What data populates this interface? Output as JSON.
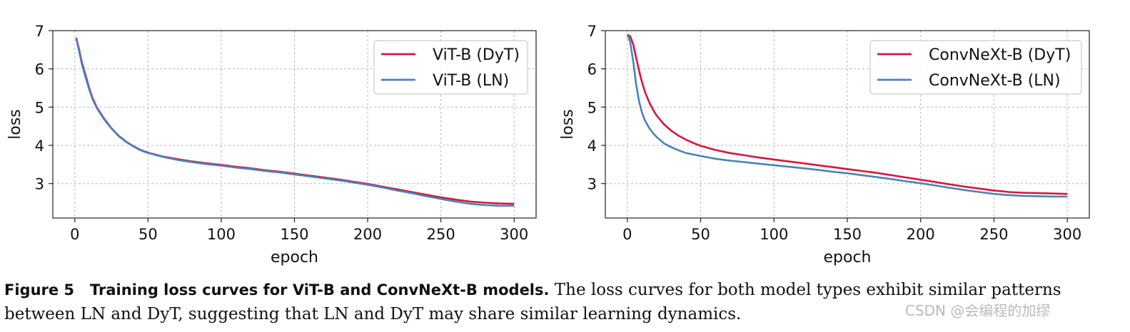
{
  "chart_data": [
    {
      "type": "line",
      "xlabel": "epoch",
      "ylabel": "loss",
      "xlim": [
        -15,
        315
      ],
      "ylim": [
        2.1,
        7
      ],
      "xticks": [
        0,
        50,
        100,
        150,
        200,
        250,
        300
      ],
      "yticks": [
        3,
        4,
        5,
        6,
        7
      ],
      "grid": true,
      "legend_position": "top-right",
      "series": [
        {
          "name": "ViT-B (DyT)",
          "color": "#d6173c",
          "x": [
            1,
            3,
            5,
            8,
            10,
            12,
            15,
            18,
            20,
            25,
            30,
            35,
            40,
            45,
            50,
            60,
            70,
            80,
            90,
            100,
            110,
            120,
            130,
            140,
            150,
            160,
            170,
            180,
            190,
            200,
            210,
            220,
            230,
            240,
            250,
            260,
            270,
            280,
            290,
            300
          ],
          "y": [
            6.82,
            6.5,
            6.15,
            5.75,
            5.48,
            5.25,
            5.0,
            4.82,
            4.7,
            4.45,
            4.25,
            4.1,
            3.98,
            3.88,
            3.81,
            3.71,
            3.64,
            3.58,
            3.53,
            3.49,
            3.44,
            3.4,
            3.35,
            3.31,
            3.26,
            3.21,
            3.16,
            3.11,
            3.05,
            2.99,
            2.92,
            2.85,
            2.78,
            2.71,
            2.64,
            2.58,
            2.53,
            2.5,
            2.48,
            2.47
          ]
        },
        {
          "name": "ViT-B (LN)",
          "color": "#4a83b8",
          "x": [
            1,
            3,
            5,
            8,
            10,
            12,
            15,
            18,
            20,
            25,
            30,
            35,
            40,
            45,
            50,
            60,
            70,
            80,
            90,
            100,
            110,
            120,
            130,
            140,
            150,
            160,
            170,
            180,
            190,
            200,
            210,
            220,
            230,
            240,
            250,
            260,
            270,
            280,
            290,
            300
          ],
          "y": [
            6.8,
            6.45,
            6.1,
            5.7,
            5.44,
            5.22,
            4.98,
            4.8,
            4.68,
            4.44,
            4.24,
            4.09,
            3.97,
            3.87,
            3.8,
            3.7,
            3.62,
            3.56,
            3.51,
            3.47,
            3.42,
            3.38,
            3.33,
            3.29,
            3.24,
            3.19,
            3.14,
            3.09,
            3.03,
            2.97,
            2.9,
            2.82,
            2.75,
            2.67,
            2.6,
            2.53,
            2.47,
            2.44,
            2.42,
            2.42
          ]
        }
      ],
      "tick_labels_x": [
        "0",
        "50",
        "100",
        "150",
        "200",
        "250",
        "300"
      ],
      "tick_labels_y": [
        "3",
        "4",
        "5",
        "6",
        "7"
      ]
    },
    {
      "type": "line",
      "xlabel": "epoch",
      "ylabel": "loss",
      "xlim": [
        -15,
        315
      ],
      "ylim": [
        2.1,
        7
      ],
      "xticks": [
        0,
        50,
        100,
        150,
        200,
        250,
        300
      ],
      "yticks": [
        3,
        4,
        5,
        6,
        7
      ],
      "grid": true,
      "legend_position": "top-right",
      "series": [
        {
          "name": "ConvNeXt-B (DyT)",
          "color": "#d6173c",
          "x": [
            0,
            2,
            4,
            6,
            8,
            10,
            12,
            15,
            18,
            20,
            25,
            30,
            35,
            40,
            45,
            50,
            60,
            70,
            80,
            90,
            100,
            110,
            120,
            130,
            140,
            150,
            160,
            170,
            180,
            190,
            200,
            210,
            220,
            230,
            240,
            250,
            260,
            270,
            280,
            290,
            300
          ],
          "y": [
            6.9,
            6.85,
            6.65,
            6.3,
            5.95,
            5.65,
            5.4,
            5.12,
            4.9,
            4.78,
            4.55,
            4.38,
            4.25,
            4.15,
            4.06,
            3.99,
            3.88,
            3.8,
            3.74,
            3.68,
            3.63,
            3.58,
            3.53,
            3.48,
            3.43,
            3.38,
            3.33,
            3.28,
            3.22,
            3.16,
            3.1,
            3.04,
            2.98,
            2.92,
            2.87,
            2.82,
            2.78,
            2.76,
            2.75,
            2.74,
            2.73
          ]
        },
        {
          "name": "ConvNeXt-B (LN)",
          "color": "#4a83b8",
          "x": [
            0,
            2,
            4,
            6,
            8,
            10,
            12,
            15,
            18,
            20,
            25,
            30,
            35,
            40,
            45,
            50,
            60,
            70,
            80,
            90,
            100,
            110,
            120,
            130,
            140,
            150,
            160,
            170,
            180,
            190,
            200,
            210,
            220,
            230,
            240,
            250,
            260,
            270,
            280,
            290,
            300
          ],
          "y": [
            6.9,
            6.7,
            6.2,
            5.6,
            5.15,
            4.85,
            4.65,
            4.45,
            4.3,
            4.22,
            4.05,
            3.95,
            3.87,
            3.8,
            3.76,
            3.72,
            3.65,
            3.6,
            3.56,
            3.52,
            3.48,
            3.44,
            3.4,
            3.36,
            3.31,
            3.27,
            3.22,
            3.17,
            3.12,
            3.06,
            3.01,
            2.95,
            2.89,
            2.83,
            2.78,
            2.73,
            2.7,
            2.68,
            2.67,
            2.66,
            2.66
          ]
        }
      ],
      "tick_labels_x": [
        "0",
        "50",
        "100",
        "150",
        "200",
        "250",
        "300"
      ],
      "tick_labels_y": [
        "3",
        "4",
        "5",
        "6",
        "7"
      ]
    }
  ],
  "caption": {
    "label": "Figure 5",
    "title": "Training loss curves for ViT-B and ConvNeXt-B models.",
    "text": "The loss curves for both model types exhibit similar patterns between LN and DyT, suggesting that LN and DyT may share similar learning dynamics."
  },
  "watermark": "CSDN @会编程的加缪"
}
